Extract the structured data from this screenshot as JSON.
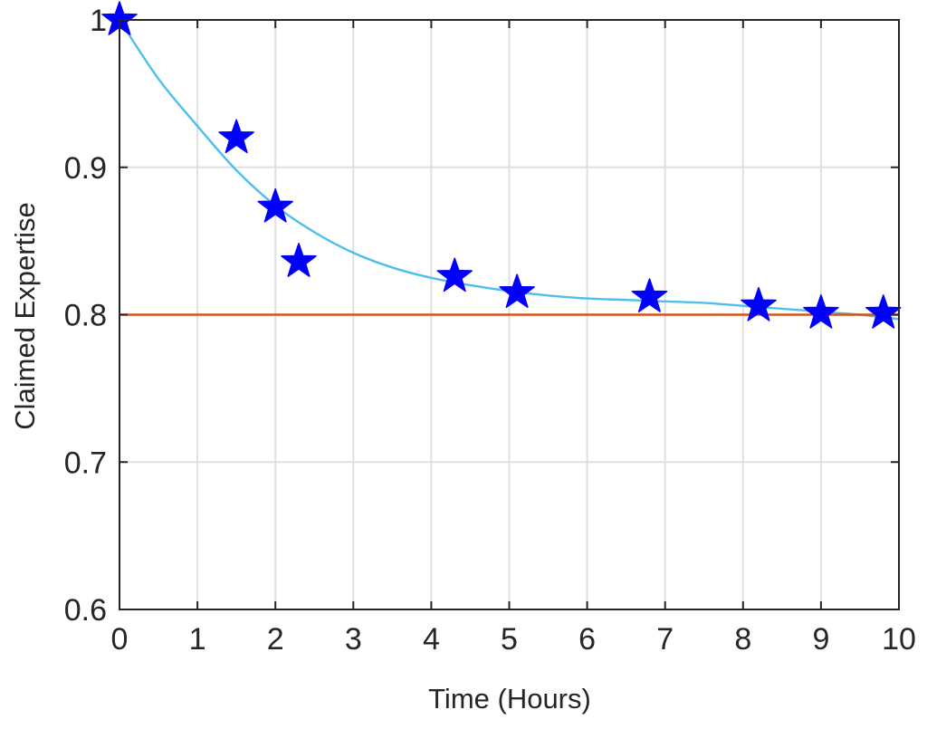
{
  "chart_data": {
    "type": "scatter",
    "title": "",
    "xlabel": "Time (Hours)",
    "ylabel": "Claimed Expertise",
    "xlim": [
      0,
      10
    ],
    "ylim": [
      0.6,
      1.0
    ],
    "xticks": [
      0,
      1,
      2,
      3,
      4,
      5,
      6,
      7,
      8,
      9,
      10
    ],
    "xtick_labels": [
      "0",
      "1",
      "2",
      "3",
      "4",
      "5",
      "6",
      "7",
      "8",
      "9",
      "10"
    ],
    "yticks": [
      0.6,
      0.7,
      0.8,
      0.9,
      1.0
    ],
    "ytick_labels": [
      "0.6",
      "0.7",
      "0.8",
      "0.9",
      "1"
    ],
    "grid": true,
    "series": [
      {
        "kind": "points",
        "marker": "star",
        "color": "#0000ff",
        "x": [
          0,
          1.5,
          2.0,
          2.3,
          4.3,
          5.1,
          6.8,
          8.2,
          9.0,
          9.8
        ],
        "y": [
          1.0,
          0.92,
          0.873,
          0.836,
          0.826,
          0.815,
          0.812,
          0.806,
          0.801,
          0.801
        ]
      },
      {
        "kind": "fit",
        "color": "#4dbeee",
        "x": [
          0,
          0.5,
          1,
          1.5,
          2,
          2.5,
          3,
          3.5,
          4,
          4.5,
          5,
          5.5,
          6,
          6.5,
          7,
          7.5,
          8,
          8.5,
          9,
          9.5,
          10
        ],
        "y": [
          1.0,
          0.96,
          0.928,
          0.898,
          0.874,
          0.856,
          0.842,
          0.832,
          0.825,
          0.82,
          0.816,
          0.813,
          0.811,
          0.81,
          0.809,
          0.808,
          0.806,
          0.804,
          0.802,
          0.8,
          0.797
        ]
      },
      {
        "kind": "reference",
        "color": "#d95319",
        "x": [
          0,
          10
        ],
        "y": [
          0.8,
          0.8
        ]
      }
    ]
  }
}
